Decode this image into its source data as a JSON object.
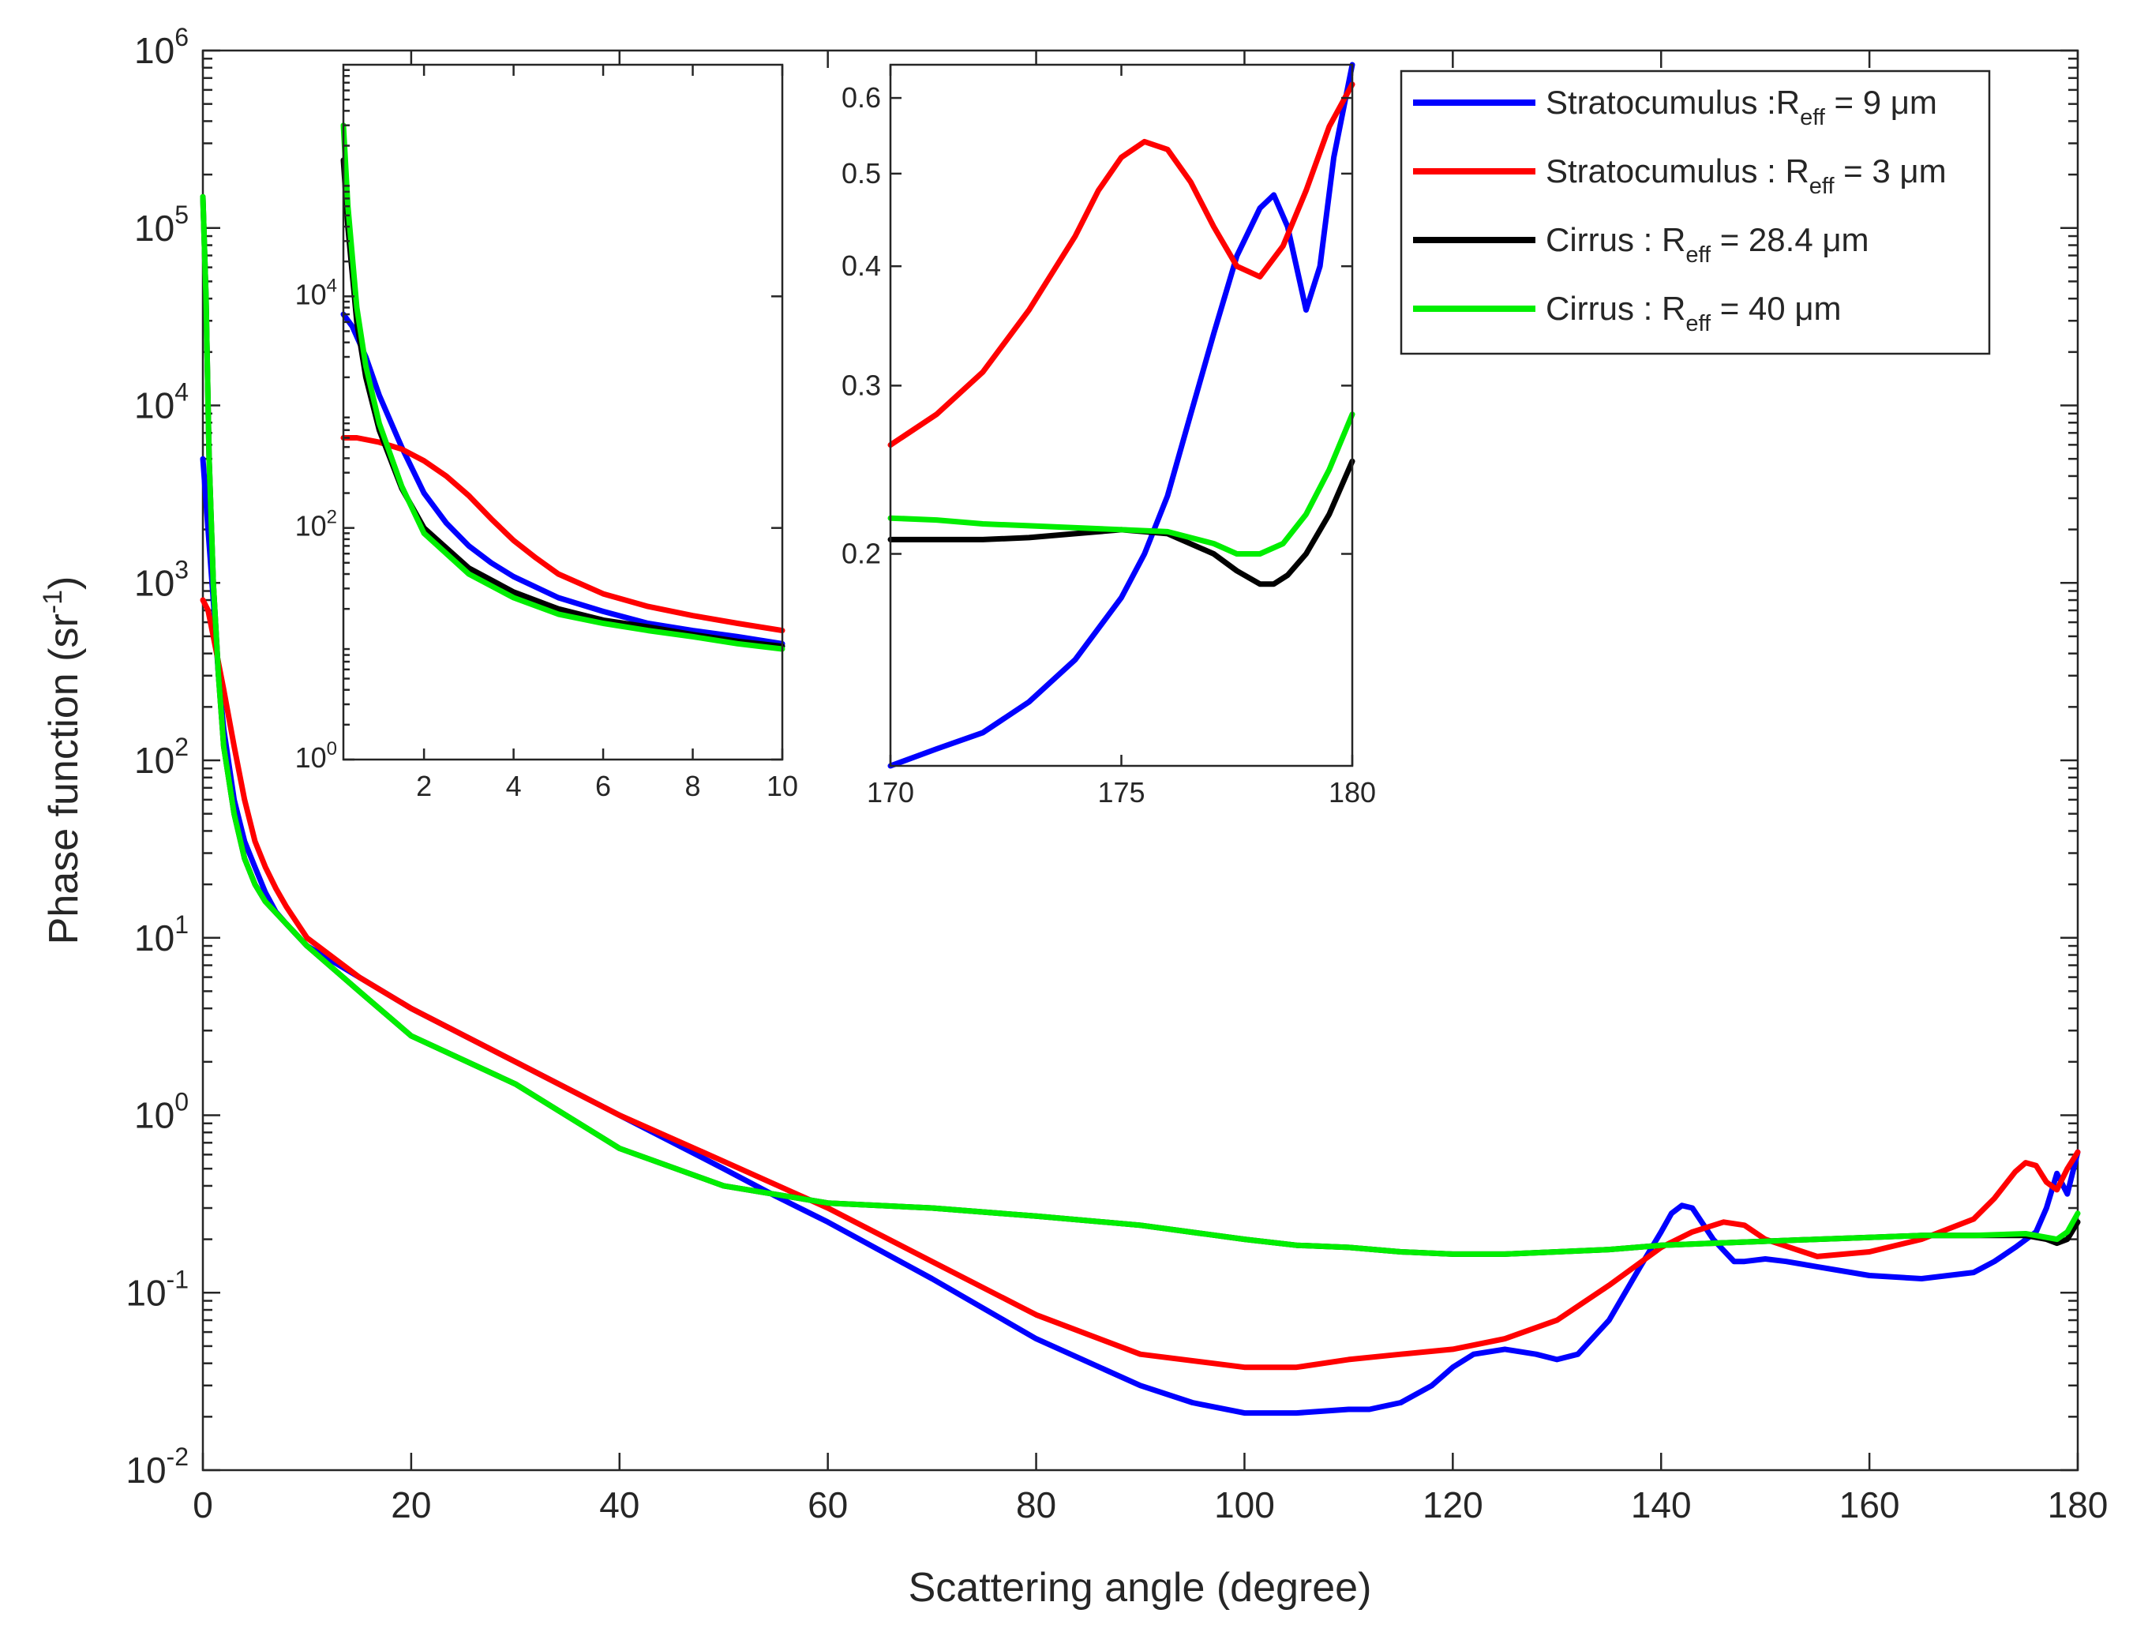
{
  "chart_data": {
    "type": "line",
    "xlabel": "Scattering angle (degree)",
    "ylabel": "Phase function (sr",
    "ylabel_sup": "-1",
    "ylabel_close": ")",
    "yscale": "log",
    "xlim": [
      0,
      180
    ],
    "ylim_exp": [
      -2,
      6
    ],
    "xticks": [
      "0",
      "20",
      "40",
      "60",
      "80",
      "100",
      "120",
      "140",
      "160",
      "180"
    ],
    "yticks": [
      {
        "base": "10",
        "exp": "-2"
      },
      {
        "base": "10",
        "exp": "-1"
      },
      {
        "base": "10",
        "exp": "0"
      },
      {
        "base": "10",
        "exp": "1"
      },
      {
        "base": "10",
        "exp": "2"
      },
      {
        "base": "10",
        "exp": "3"
      },
      {
        "base": "10",
        "exp": "4"
      },
      {
        "base": "10",
        "exp": "5"
      },
      {
        "base": "10",
        "exp": "6"
      }
    ],
    "legend_position": "top-right",
    "series": [
      {
        "name": "Stratocumulus :R",
        "sub": "eff",
        "suffix": " = 9 μm",
        "color": "#0000ff",
        "x": [
          0,
          0.5,
          1,
          1.5,
          2,
          3,
          4,
          5,
          6,
          7,
          8,
          10,
          15,
          20,
          30,
          40,
          50,
          55,
          60,
          70,
          80,
          90,
          95,
          100,
          105,
          110,
          112,
          115,
          118,
          120,
          122,
          125,
          128,
          130,
          132,
          135,
          138,
          140,
          141,
          142,
          143,
          145,
          147,
          148,
          150,
          152,
          155,
          160,
          165,
          170,
          172,
          174,
          176,
          177,
          178,
          179,
          180
        ],
        "y": [
          5000,
          2000,
          800,
          300,
          150,
          60,
          35,
          25,
          18,
          14,
          12,
          9,
          6,
          4,
          2,
          1,
          0.5,
          0.35,
          0.25,
          0.12,
          0.055,
          0.03,
          0.024,
          0.021,
          0.021,
          0.022,
          0.022,
          0.024,
          0.03,
          0.038,
          0.045,
          0.048,
          0.045,
          0.042,
          0.045,
          0.07,
          0.14,
          0.22,
          0.28,
          0.31,
          0.3,
          0.2,
          0.15,
          0.15,
          0.155,
          0.15,
          0.14,
          0.125,
          0.12,
          0.13,
          0.15,
          0.18,
          0.22,
          0.3,
          0.47,
          0.36,
          0.62
        ]
      },
      {
        "name": "Stratocumulus : R",
        "sub": "eff",
        "suffix": " = 3 μm",
        "color": "#ff0000",
        "x": [
          0,
          0.5,
          1,
          2,
          3,
          4,
          5,
          6,
          7,
          8,
          10,
          15,
          20,
          30,
          40,
          50,
          60,
          70,
          80,
          90,
          100,
          105,
          110,
          115,
          120,
          125,
          130,
          135,
          140,
          143,
          146,
          148,
          150,
          155,
          160,
          165,
          170,
          172,
          174,
          175,
          176,
          177,
          178,
          179,
          180
        ],
        "y": [
          800,
          700,
          500,
          250,
          120,
          60,
          35,
          25,
          19,
          15,
          10,
          6,
          4,
          2,
          1,
          0.55,
          0.3,
          0.15,
          0.075,
          0.045,
          0.038,
          0.038,
          0.042,
          0.045,
          0.048,
          0.055,
          0.07,
          0.11,
          0.18,
          0.22,
          0.25,
          0.24,
          0.2,
          0.16,
          0.17,
          0.2,
          0.26,
          0.34,
          0.48,
          0.54,
          0.52,
          0.42,
          0.38,
          0.5,
          0.62
        ]
      },
      {
        "name": "Cirrus : R",
        "sub": "eff",
        "suffix": " = 28.4 μm",
        "color": "#000000",
        "x": [
          0,
          0.3,
          0.6,
          1,
          1.5,
          2,
          3,
          4,
          5,
          6,
          8,
          10,
          15,
          20,
          30,
          40,
          50,
          60,
          70,
          80,
          90,
          100,
          105,
          110,
          115,
          120,
          125,
          130,
          135,
          140,
          145,
          150,
          155,
          160,
          165,
          170,
          175,
          176,
          177,
          178,
          179,
          180
        ],
        "y": [
          150000,
          40000,
          5000,
          1000,
          300,
          120,
          50,
          28,
          20,
          16,
          12,
          9,
          5,
          2.8,
          1.5,
          0.65,
          0.4,
          0.32,
          0.3,
          0.27,
          0.24,
          0.2,
          0.185,
          0.18,
          0.17,
          0.165,
          0.165,
          0.17,
          0.175,
          0.185,
          0.19,
          0.195,
          0.2,
          0.205,
          0.21,
          0.21,
          0.21,
          0.205,
          0.2,
          0.19,
          0.2,
          0.25
        ]
      },
      {
        "name": "Cirrus : R",
        "sub": "eff",
        "suffix": " = 40 μm",
        "color": "#00ee00",
        "x": [
          0,
          0.3,
          0.6,
          1,
          1.5,
          2,
          3,
          4,
          5,
          6,
          8,
          10,
          15,
          20,
          30,
          40,
          50,
          60,
          70,
          80,
          90,
          100,
          105,
          110,
          115,
          120,
          125,
          130,
          135,
          140,
          145,
          150,
          155,
          160,
          165,
          170,
          175,
          176,
          177,
          178,
          179,
          180
        ],
        "y": [
          150000,
          40000,
          5000,
          1000,
          300,
          120,
          50,
          28,
          20,
          16,
          12,
          9,
          5,
          2.8,
          1.5,
          0.65,
          0.4,
          0.32,
          0.3,
          0.27,
          0.24,
          0.2,
          0.185,
          0.18,
          0.17,
          0.165,
          0.165,
          0.17,
          0.175,
          0.185,
          0.19,
          0.195,
          0.2,
          0.205,
          0.21,
          0.21,
          0.215,
          0.21,
          0.205,
          0.2,
          0.22,
          0.28
        ]
      }
    ],
    "inset_left": {
      "type": "line",
      "yscale": "log",
      "xlim": [
        0.2,
        10
      ],
      "ylim_exp": [
        0,
        6
      ],
      "xticks": [
        "2",
        "4",
        "6",
        "8",
        "10"
      ],
      "yticks": [
        {
          "base": "10",
          "exp": "0"
        },
        {
          "base": "10",
          "exp": "2"
        },
        {
          "base": "10",
          "exp": "4"
        }
      ],
      "series": [
        {
          "color": "#0000ff",
          "x": [
            0.2,
            0.4,
            0.7,
            1,
            1.5,
            2,
            2.5,
            3,
            3.5,
            4,
            5,
            6,
            7,
            8,
            9,
            10
          ],
          "y": [
            7000,
            5500,
            3000,
            1400,
            500,
            200,
            110,
            70,
            50,
            38,
            25,
            19,
            15,
            13,
            11.5,
            10
          ]
        },
        {
          "color": "#ff0000",
          "x": [
            0.2,
            0.5,
            1,
            1.5,
            2,
            2.5,
            3,
            3.5,
            4,
            4.5,
            5,
            6,
            7,
            8,
            9,
            10
          ],
          "y": [
            600,
            600,
            550,
            480,
            380,
            280,
            190,
            120,
            78,
            55,
            40,
            27,
            21,
            17.5,
            15,
            13
          ]
        },
        {
          "color": "#000000",
          "x": [
            0.2,
            0.3,
            0.5,
            0.7,
            1,
            1.5,
            2,
            3,
            4,
            5,
            6,
            7,
            8,
            9,
            10
          ],
          "y": [
            150000,
            40000,
            6000,
            2000,
            700,
            220,
            100,
            45,
            28,
            20,
            16,
            14,
            12,
            10.5,
            9.5
          ]
        },
        {
          "color": "#00ee00",
          "x": [
            0.2,
            0.3,
            0.5,
            0.7,
            1,
            1.5,
            2,
            3,
            4,
            5,
            6,
            7,
            8,
            9,
            10
          ],
          "y": [
            300000,
            60000,
            8000,
            2500,
            800,
            230,
            90,
            40,
            25,
            18,
            15,
            13,
            11.5,
            10,
            9
          ]
        }
      ]
    },
    "inset_right": {
      "type": "line",
      "yscale": "log",
      "xlim": [
        170,
        180
      ],
      "ylim": [
        0.12,
        0.65
      ],
      "xticks": [
        "170",
        "175",
        "180"
      ],
      "yticks": [
        "0.2",
        "0.3",
        "0.4",
        "0.5",
        "0.6"
      ],
      "series": [
        {
          "color": "#0000ff",
          "x": [
            170,
            171,
            172,
            173,
            174,
            175,
            175.5,
            176,
            176.5,
            177,
            177.5,
            178,
            178.3,
            178.6,
            179,
            179.3,
            179.6,
            180
          ],
          "y": [
            0.12,
            0.125,
            0.13,
            0.14,
            0.155,
            0.18,
            0.2,
            0.23,
            0.28,
            0.34,
            0.41,
            0.46,
            0.475,
            0.44,
            0.36,
            0.4,
            0.52,
            0.66
          ]
        },
        {
          "color": "#ff0000",
          "x": [
            170,
            171,
            172,
            173,
            174,
            174.5,
            175,
            175.5,
            176,
            176.5,
            177,
            177.5,
            178,
            178.5,
            179,
            179.5,
            180
          ],
          "y": [
            0.26,
            0.28,
            0.31,
            0.36,
            0.43,
            0.48,
            0.52,
            0.54,
            0.53,
            0.49,
            0.44,
            0.4,
            0.39,
            0.42,
            0.48,
            0.56,
            0.62
          ]
        },
        {
          "color": "#000000",
          "x": [
            170,
            171,
            172,
            173,
            174,
            175,
            176,
            177,
            177.5,
            178,
            178.3,
            178.6,
            179,
            179.5,
            180
          ],
          "y": [
            0.207,
            0.207,
            0.207,
            0.208,
            0.21,
            0.212,
            0.21,
            0.2,
            0.192,
            0.186,
            0.186,
            0.19,
            0.2,
            0.22,
            0.25
          ]
        },
        {
          "color": "#00ee00",
          "x": [
            170,
            171,
            172,
            173,
            174,
            175,
            176,
            177,
            177.5,
            178,
            178.5,
            179,
            179.5,
            180
          ],
          "y": [
            0.218,
            0.217,
            0.215,
            0.214,
            0.213,
            0.212,
            0.211,
            0.205,
            0.2,
            0.2,
            0.205,
            0.22,
            0.245,
            0.28
          ]
        }
      ]
    }
  }
}
